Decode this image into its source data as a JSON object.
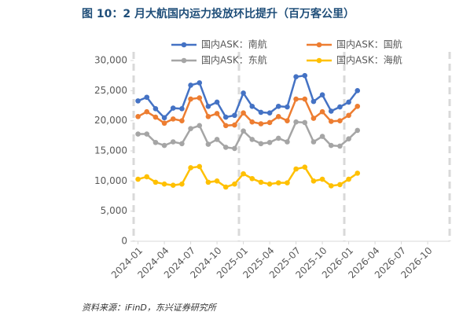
{
  "chart_data": {
    "type": "line",
    "title": "图 10：2 月大航国内运力投放环比提升（百万客公里）",
    "source": "资料来源：iFinD，东兴证券研究所",
    "categories": [
      "2024-01",
      null,
      null,
      "2024-04",
      null,
      null,
      "2024-07",
      null,
      null,
      "2024-10",
      null,
      null,
      "2025-01",
      null,
      null,
      "2025-04",
      null,
      null,
      "2025-07",
      null,
      null,
      "2025-10",
      null,
      null,
      "2026-01",
      null,
      null,
      "2026-04",
      null,
      null,
      "2026-07",
      null,
      null,
      "2026-10",
      null,
      null
    ],
    "series": [
      {
        "name": "国内ASK：南航",
        "color": "#4472c4",
        "values": [
          23300,
          23900,
          22000,
          20500,
          22100,
          22000,
          25900,
          26300,
          22400,
          23100,
          20600,
          20900,
          24600,
          22400,
          21400,
          21300,
          22400,
          22300,
          27300,
          27500,
          23200,
          24300,
          21600,
          22300,
          23100,
          25000,
          null,
          null,
          null,
          null,
          null,
          null,
          null,
          null,
          null,
          null
        ]
      },
      {
        "name": "国内ASK：国航",
        "color": "#ed7d31",
        "values": [
          20700,
          21500,
          20600,
          19600,
          20300,
          20000,
          23600,
          23800,
          20700,
          21200,
          19200,
          19300,
          21300,
          19800,
          19500,
          19700,
          20700,
          20000,
          23600,
          23600,
          20400,
          21500,
          19900,
          20000,
          20900,
          22400,
          null,
          null,
          null,
          null,
          null,
          null,
          null,
          null,
          null,
          null
        ]
      },
      {
        "name": "国内ASK：东航",
        "color": "#a5a5a5",
        "values": [
          17800,
          17800,
          16400,
          15900,
          16500,
          16200,
          18700,
          19200,
          16100,
          16900,
          15600,
          15400,
          18300,
          16900,
          16200,
          16400,
          17100,
          16500,
          19800,
          19700,
          16500,
          17400,
          15900,
          15800,
          17000,
          18400,
          null,
          null,
          null,
          null,
          null,
          null,
          null,
          null,
          null,
          null
        ]
      },
      {
        "name": "国内ASK：海航",
        "color": "#ffc000",
        "values": [
          10300,
          10700,
          9800,
          9500,
          9300,
          9500,
          12200,
          12400,
          9800,
          10000,
          9000,
          9500,
          11200,
          10400,
          9800,
          9500,
          9700,
          9700,
          12000,
          12300,
          10000,
          10300,
          9200,
          9400,
          10300,
          11300,
          null,
          null,
          null,
          null,
          null,
          null,
          null,
          null,
          null,
          null
        ]
      }
    ],
    "ylim": [
      0,
      30000
    ],
    "yticks": [
      0,
      {
        "value": 5000,
        "label": "5,000"
      },
      {
        "value": 10000,
        "label": "10,000"
      },
      {
        "value": 15000,
        "label": "15,000"
      },
      {
        "value": 20000,
        "label": "20,000"
      },
      {
        "value": 25000,
        "label": "25,000"
      },
      {
        "value": 30000,
        "label": "30,000"
      }
    ]
  }
}
